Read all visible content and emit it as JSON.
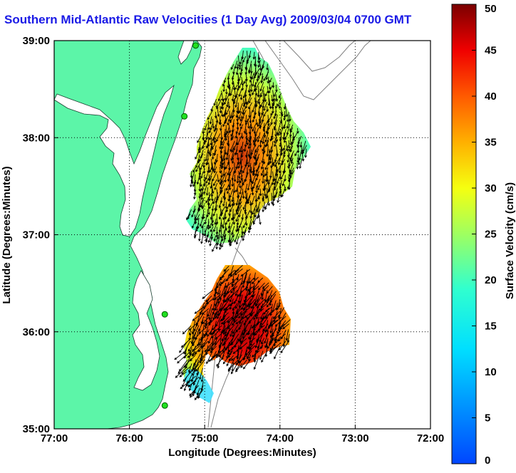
{
  "title": "Southern Mid-Atlantic Raw Velocities (1 Day Avg) 2009/03/04 0700 GMT",
  "map": {
    "xlabel": "Longitude (Degrees:Minutes)",
    "ylabel": "Latitude (Degrees:Minutes)",
    "lon_ticks": [
      "77:00",
      "76:00",
      "75:00",
      "74:00",
      "73:00",
      "72:00"
    ],
    "lat_ticks": [
      "39:00",
      "38:00",
      "37:00",
      "36:00",
      "35:00"
    ],
    "lon_range": [
      -77,
      -72
    ],
    "lat_range": [
      35,
      39
    ],
    "grid": true,
    "land_color": "#5cf5a8",
    "ocean_color": "#ffffff",
    "gridline_style": "dotted"
  },
  "colorbar": {
    "label": "Surface Velocity (cm/s)",
    "ticks": [
      "0",
      "5",
      "10",
      "15",
      "20",
      "25",
      "30",
      "35",
      "40",
      "45",
      "50"
    ],
    "min": 0,
    "max": 50,
    "colormap": "jet"
  },
  "stations": [
    {
      "lon": -75.12,
      "lat": 38.95
    },
    {
      "lon": -75.27,
      "lat": 38.22
    },
    {
      "lon": -75.53,
      "lat": 36.18
    },
    {
      "lon": -75.53,
      "lat": 35.24
    }
  ]
}
